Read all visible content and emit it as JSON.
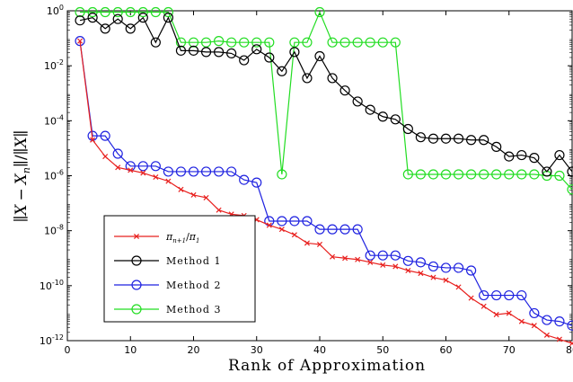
{
  "chart_data": {
    "type": "line",
    "xlabel": "Rank of Approximation",
    "ylabel": "||X − X_n|| / ||X||",
    "xlim": [
      0,
      80
    ],
    "ylim_log10": [
      -12,
      0
    ],
    "yscale": "log",
    "grid": false,
    "legend_position": "bottom-left",
    "x_ticks": [
      "0",
      "10",
      "20",
      "30",
      "40",
      "50",
      "60",
      "70",
      "80"
    ],
    "y_ticks": [
      {
        "base": "10",
        "exp": "0"
      },
      {
        "base": "10",
        "exp": "-2"
      },
      {
        "base": "10",
        "exp": "-4"
      },
      {
        "base": "10",
        "exp": "-6"
      },
      {
        "base": "10",
        "exp": "-8"
      },
      {
        "base": "10",
        "exp": "-10"
      },
      {
        "base": "10",
        "exp": "-12"
      }
    ],
    "x": [
      2,
      4,
      6,
      8,
      10,
      12,
      14,
      16,
      18,
      20,
      22,
      24,
      26,
      28,
      30,
      32,
      34,
      36,
      38,
      40,
      42,
      44,
      46,
      48,
      50,
      52,
      54,
      56,
      58,
      60,
      62,
      64,
      66,
      68,
      70,
      72,
      74,
      76,
      78,
      80
    ],
    "series": [
      {
        "name": "π_{n+1}/π_1",
        "color": "#e8211f",
        "marker": "x",
        "log10_values": [
          -1.1,
          -4.7,
          -5.3,
          -5.7,
          -5.8,
          -5.9,
          -6.05,
          -6.2,
          -6.5,
          -6.7,
          -6.8,
          -7.25,
          -7.4,
          -7.45,
          -7.6,
          -7.8,
          -7.95,
          -8.15,
          -8.45,
          -8.5,
          -8.95,
          -9.0,
          -9.05,
          -9.15,
          -9.25,
          -9.3,
          -9.45,
          -9.55,
          -9.7,
          -9.8,
          -10.05,
          -10.45,
          -10.75,
          -11.05,
          -11.0,
          -11.3,
          -11.45,
          -11.8,
          -11.95,
          -12.1
        ]
      },
      {
        "name": "Method 1",
        "color": "#000000",
        "marker": "o",
        "log10_values": [
          -0.35,
          -0.25,
          -0.65,
          -0.3,
          -0.65,
          -0.25,
          -1.15,
          -0.25,
          -1.45,
          -1.45,
          -1.5,
          -1.5,
          -1.55,
          -1.8,
          -1.4,
          -1.7,
          -2.2,
          -1.5,
          -2.45,
          -1.65,
          -2.45,
          -2.9,
          -3.3,
          -3.6,
          -3.85,
          -3.95,
          -4.3,
          -4.6,
          -4.65,
          -4.65,
          -4.65,
          -4.7,
          -4.7,
          -4.95,
          -5.3,
          -5.25,
          -5.35,
          -5.85,
          -5.25,
          -5.85
        ]
      },
      {
        "name": "Method 2",
        "color": "#1f22e0",
        "marker": "o",
        "log10_values": [
          -1.1,
          -4.55,
          -4.55,
          -5.2,
          -5.65,
          -5.65,
          -5.65,
          -5.85,
          -5.85,
          -5.85,
          -5.85,
          -5.85,
          -5.85,
          -6.15,
          -6.25,
          -7.65,
          -7.65,
          -7.65,
          -7.65,
          -7.95,
          -7.95,
          -7.95,
          -7.95,
          -8.9,
          -8.9,
          -8.9,
          -9.1,
          -9.15,
          -9.3,
          -9.35,
          -9.35,
          -9.45,
          -10.35,
          -10.35,
          -10.35,
          -10.35,
          -11.0,
          -11.25,
          -11.3,
          -11.45
        ]
      },
      {
        "name": "Method 3",
        "color": "#22dd22",
        "marker": "o",
        "log10_values": [
          -0.05,
          -0.05,
          -0.05,
          -0.05,
          -0.05,
          -0.05,
          -0.05,
          -0.05,
          -1.15,
          -1.15,
          -1.15,
          -1.1,
          -1.15,
          -1.15,
          -1.15,
          -1.15,
          -5.95,
          -1.15,
          -1.15,
          -0.05,
          -1.15,
          -1.15,
          -1.15,
          -1.15,
          -1.15,
          -1.15,
          -5.95,
          -5.95,
          -5.95,
          -5.95,
          -5.95,
          -5.95,
          -5.95,
          -5.95,
          -5.95,
          -5.95,
          -5.95,
          -6.0,
          -6.0,
          -6.5
        ]
      }
    ]
  },
  "legend": {
    "entries": [
      {
        "symbol": "π",
        "sub1": "n+1",
        "slash": "/",
        "sym2": "π",
        "sub2": "1"
      },
      {
        "label": "Method 1"
      },
      {
        "label": "Method 2"
      },
      {
        "label": "Method 3"
      }
    ]
  },
  "ylabel_parts": {
    "bar": "∥",
    "x": "X",
    "minus": "−",
    "xn": "X",
    "n": "n",
    "slash": "/"
  }
}
